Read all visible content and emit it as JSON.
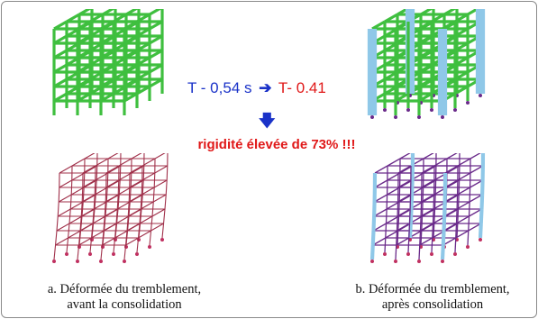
{
  "period_label": {
    "before": "T - 0,54 s",
    "after": "T- 0.41",
    "arrow_icon": "right-arrow-icon"
  },
  "down_arrow_icon": "down-arrow-icon",
  "rigidity_text": "rigidité élevée de 73% !!!",
  "caption_a": {
    "line1": "a. Déformée du tremblement,",
    "line2": "avant la consolidation"
  },
  "caption_b": {
    "line1": "b. Déformée du tremblement,",
    "line2": "après consolidation"
  },
  "colors": {
    "frame_green": "#3fbf3f",
    "column_blue": "#8fc8e8",
    "deformed_red": "#a0304a",
    "deformed_purple": "#6a2a8a",
    "support": "#c03060",
    "text_blue": "#1a32c8",
    "text_red": "#e01818"
  }
}
